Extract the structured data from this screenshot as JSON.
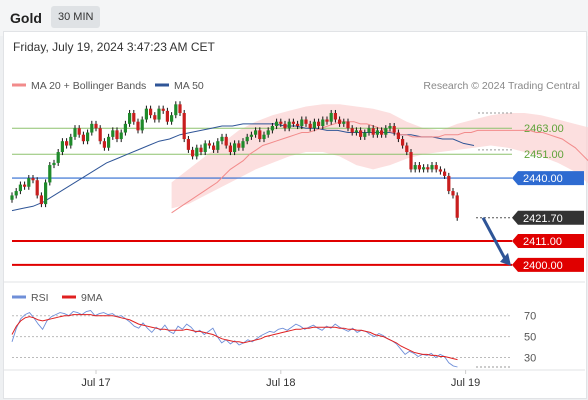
{
  "header": {
    "symbol": "Gold",
    "timeframe": "30 MIN"
  },
  "timestamp": "Friday, July 19, 2024 3:47:23 AM CET",
  "legend": {
    "ma20": {
      "label": "MA 20 + Bollinger Bands",
      "color": "#f28b8b"
    },
    "ma50": {
      "label": "MA 50",
      "color": "#2f5597"
    },
    "rsi": {
      "label": "RSI",
      "color": "#6f8fd8"
    },
    "rsi_ma": {
      "label": "9MA",
      "color": "#e02020"
    }
  },
  "credit": "Research © 2024 Trading Central",
  "chart_data": [
    {
      "type": "candlestick",
      "title": "Gold 30 MIN",
      "x_ticks": [
        {
          "label": "Jul 17",
          "index": 20
        },
        {
          "label": "Jul 18",
          "index": 64
        },
        {
          "label": "Jul 19",
          "index": 108
        }
      ],
      "ylim": [
        2393,
        2476
      ],
      "grid": false,
      "levels": [
        {
          "value": 2463.0,
          "label": "2463.00",
          "kind": "resistance",
          "color": "#8dc26f"
        },
        {
          "value": 2451.0,
          "label": "2451.00",
          "kind": "resistance",
          "color": "#8dc26f"
        },
        {
          "value": 2440.0,
          "label": "2440.00",
          "kind": "pivot",
          "color": "#2e6bd1"
        },
        {
          "value": 2421.7,
          "label": "2421.70",
          "kind": "last",
          "color": "#333333"
        },
        {
          "value": 2411.0,
          "label": "2411.00",
          "kind": "support",
          "color": "#e00000"
        },
        {
          "value": 2400.0,
          "label": "2400.00",
          "kind": "support",
          "color": "#e00000"
        }
      ],
      "forecast_arrow": {
        "from": 2421.7,
        "to": 2400.0,
        "color": "#2f5597"
      },
      "close": [
        2432,
        2434,
        2437,
        2436,
        2440,
        2439,
        2432,
        2428,
        2438,
        2446,
        2447,
        2452,
        2457,
        2455,
        2459,
        2463,
        2460,
        2457,
        2461,
        2465,
        2463,
        2457,
        2454,
        2459,
        2462,
        2458,
        2461,
        2465,
        2470,
        2466,
        2462,
        2467,
        2472,
        2469,
        2467,
        2472,
        2471,
        2466,
        2469,
        2474,
        2470,
        2458,
        2453,
        2450,
        2454,
        2452,
        2456,
        2455,
        2453,
        2457,
        2459,
        2455,
        2452,
        2456,
        2454,
        2457,
        2459,
        2460,
        2462,
        2458,
        2460,
        2462,
        2464,
        2466,
        2465,
        2463,
        2466,
        2465,
        2464,
        2467,
        2465,
        2463,
        2466,
        2464,
        2467,
        2466,
        2470,
        2467,
        2465,
        2466,
        2463,
        2461,
        2462,
        2459,
        2461,
        2463,
        2460,
        2462,
        2460,
        2463,
        2464,
        2461,
        2458,
        2455,
        2452,
        2444,
        2446,
        2444,
        2445,
        2444,
        2446,
        2444,
        2443,
        2441,
        2434,
        2432,
        2421.7
      ],
      "ma20": [
        2424,
        2426,
        2428,
        2430,
        2432,
        2434,
        2436,
        2438,
        2441,
        2444,
        2446,
        2448,
        2451,
        2453,
        2455,
        2456,
        2457,
        2458,
        2459,
        2460,
        2461,
        2461,
        2462,
        2463,
        2464,
        2465,
        2466,
        2466,
        2466,
        2465,
        2465,
        2464,
        2463,
        2462,
        2461,
        2460,
        2460,
        2459,
        2459,
        2459,
        2459,
        2459,
        2460,
        2460,
        2460,
        2461,
        2461,
        2462,
        2462,
        2462,
        2462,
        2462,
        2462,
        2462,
        2462,
        2462,
        2461,
        2461,
        2460,
        2459,
        2458,
        2456,
        2454,
        2451,
        2448,
        2446,
        2444,
        2441,
        2436
      ],
      "ma20_x0": 38,
      "ma50": [
        2425,
        2426,
        2427,
        2429,
        2432,
        2435,
        2438,
        2441,
        2444,
        2447,
        2449,
        2451,
        2453,
        2455,
        2457,
        2458,
        2460,
        2461,
        2462,
        2463,
        2464,
        2464,
        2465,
        2465,
        2465,
        2465,
        2464,
        2464,
        2463,
        2463,
        2462,
        2462,
        2461,
        2461,
        2461,
        2461,
        2461,
        2460,
        2460,
        2459,
        2459,
        2458,
        2458,
        2456,
        2455
      ],
      "ma50_x0": 0,
      "bollinger": {
        "upper": [
          2438,
          2444,
          2450,
          2456,
          2462,
          2466,
          2469,
          2471,
          2473,
          2474,
          2474,
          2473,
          2472,
          2470,
          2466,
          2463,
          2462,
          2465,
          2467,
          2469,
          2470,
          2470,
          2469,
          2467,
          2465,
          2463
        ],
        "lower": [
          2426,
          2428,
          2432,
          2436,
          2440,
          2444,
          2447,
          2450,
          2452,
          2452,
          2450,
          2446,
          2444,
          2446,
          2449,
          2451,
          2452,
          2453,
          2454,
          2455,
          2454,
          2452,
          2450,
          2447,
          2443,
          2436
        ],
        "x0": 38
      }
    },
    {
      "type": "line",
      "title": "RSI",
      "ylim": [
        20,
        85
      ],
      "y_ticks": [
        70,
        50,
        30
      ],
      "rsi": [
        45,
        58,
        67,
        71,
        73,
        68,
        62,
        57,
        65,
        69,
        71,
        73,
        72,
        70,
        74,
        73,
        71,
        74,
        75,
        70,
        72,
        73,
        71,
        72,
        69,
        70,
        67,
        64,
        60,
        58,
        63,
        58,
        54,
        59,
        56,
        61,
        55,
        53,
        60,
        57,
        62,
        59,
        54,
        56,
        52,
        55,
        58,
        50,
        44,
        47,
        43,
        46,
        42,
        44,
        47,
        45,
        48,
        51,
        53,
        55,
        54,
        57,
        58,
        56,
        59,
        62,
        60,
        57,
        59,
        61,
        58,
        56,
        60,
        58,
        62,
        59,
        57,
        55,
        58,
        54,
        56,
        55,
        52,
        50,
        53,
        51,
        48,
        46,
        43,
        38,
        33,
        36,
        34,
        31,
        33,
        32,
        34,
        30,
        33,
        31,
        25,
        22,
        21
      ],
      "rsi_ma": [
        52,
        60,
        65,
        68,
        69,
        68,
        66,
        65,
        66,
        67,
        68,
        69,
        70,
        70,
        71,
        71,
        71,
        71,
        71,
        70,
        70,
        70,
        70,
        70,
        69,
        68,
        67,
        66,
        64,
        62,
        61,
        60,
        59,
        58,
        57,
        57,
        56,
        56,
        56,
        56,
        57,
        56,
        55,
        55,
        54,
        53,
        52,
        50,
        48,
        47,
        46,
        45,
        45,
        44,
        45,
        46,
        47,
        48,
        50,
        51,
        52,
        53,
        54,
        55,
        56,
        57,
        57,
        58,
        58,
        59,
        59,
        59,
        59,
        59,
        59,
        58,
        58,
        57,
        57,
        56,
        56,
        55,
        54,
        52,
        51,
        50,
        48,
        46,
        44,
        41,
        39,
        37,
        35,
        34,
        33,
        33,
        32,
        32,
        31,
        31,
        30,
        29,
        28
      ]
    }
  ]
}
